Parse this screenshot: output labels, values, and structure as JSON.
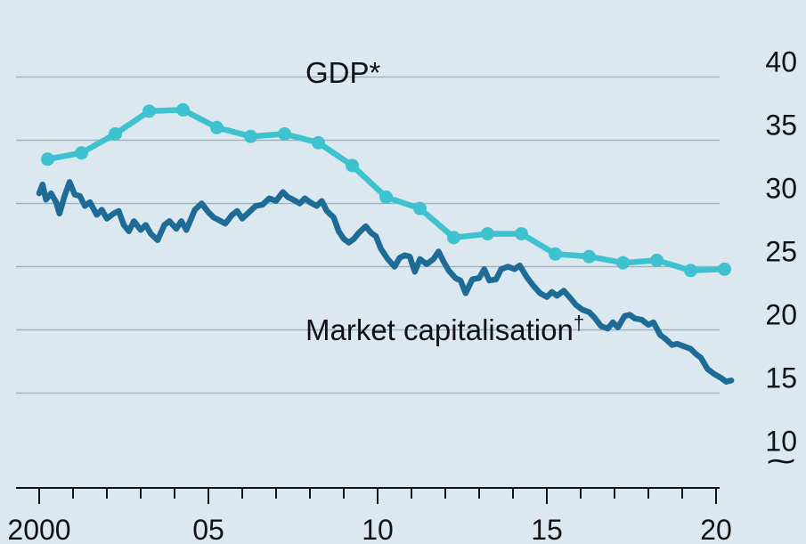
{
  "chart_data": {
    "type": "line",
    "title": "",
    "xlabel": "",
    "ylabel": "",
    "xlim": [
      1999.8,
      2020.6
    ],
    "ylim": [
      10,
      40
    ],
    "y_axis_break": true,
    "grid": true,
    "legend": "inline labels",
    "x_ticks": [
      {
        "value": 2000,
        "label": "2000"
      },
      {
        "value": 2005,
        "label": "05"
      },
      {
        "value": 2010,
        "label": "10"
      },
      {
        "value": 2015,
        "label": "15"
      },
      {
        "value": 2020,
        "label": "20"
      }
    ],
    "y_ticks": [
      10,
      15,
      20,
      25,
      30,
      35,
      40
    ],
    "break_symbol": "⁓",
    "colors": {
      "background": "#dbe8f0",
      "grid": "#9fb3bf",
      "gdp": "#3fc2cf",
      "market": "#1e6c96",
      "axis": "#121212"
    },
    "series": [
      {
        "name": "GDP*",
        "marker": "circle",
        "points": [
          [
            2000.25,
            33.5
          ],
          [
            2001.25,
            34.0
          ],
          [
            2002.25,
            35.5
          ],
          [
            2003.25,
            37.3
          ],
          [
            2004.25,
            37.4
          ],
          [
            2005.25,
            36.0
          ],
          [
            2006.25,
            35.3
          ],
          [
            2007.25,
            35.5
          ],
          [
            2008.25,
            34.8
          ],
          [
            2009.25,
            33.0
          ],
          [
            2010.25,
            30.5
          ],
          [
            2011.25,
            29.6
          ],
          [
            2012.25,
            27.3
          ],
          [
            2013.25,
            27.6
          ],
          [
            2014.25,
            27.6
          ],
          [
            2015.25,
            26.0
          ],
          [
            2016.25,
            25.8
          ],
          [
            2017.25,
            25.3
          ],
          [
            2018.25,
            25.5
          ],
          [
            2019.25,
            24.7
          ],
          [
            2020.25,
            24.8
          ]
        ]
      },
      {
        "name": "Market capitalisation†",
        "marker": "none",
        "points": [
          [
            2000.0,
            30.8
          ],
          [
            2000.1,
            31.5
          ],
          [
            2000.2,
            30.3
          ],
          [
            2000.35,
            30.8
          ],
          [
            2000.5,
            30.1
          ],
          [
            2000.6,
            29.2
          ],
          [
            2000.75,
            30.6
          ],
          [
            2000.9,
            31.7
          ],
          [
            2001.05,
            30.7
          ],
          [
            2001.2,
            30.6
          ],
          [
            2001.35,
            29.8
          ],
          [
            2001.5,
            30.1
          ],
          [
            2001.7,
            29.1
          ],
          [
            2001.85,
            29.5
          ],
          [
            2002.0,
            28.8
          ],
          [
            2002.2,
            29.2
          ],
          [
            2002.35,
            29.4
          ],
          [
            2002.5,
            28.3
          ],
          [
            2002.65,
            27.8
          ],
          [
            2002.8,
            28.6
          ],
          [
            2003.0,
            27.9
          ],
          [
            2003.15,
            28.3
          ],
          [
            2003.3,
            27.6
          ],
          [
            2003.5,
            27.1
          ],
          [
            2003.7,
            28.3
          ],
          [
            2003.85,
            28.6
          ],
          [
            2004.05,
            28.0
          ],
          [
            2004.2,
            28.6
          ],
          [
            2004.35,
            27.9
          ],
          [
            2004.6,
            29.5
          ],
          [
            2004.8,
            30.0
          ],
          [
            2005.0,
            29.3
          ],
          [
            2005.15,
            28.9
          ],
          [
            2005.3,
            28.7
          ],
          [
            2005.5,
            28.4
          ],
          [
            2005.7,
            29.1
          ],
          [
            2005.85,
            29.4
          ],
          [
            2006.0,
            28.8
          ],
          [
            2006.2,
            29.3
          ],
          [
            2006.4,
            29.8
          ],
          [
            2006.6,
            29.9
          ],
          [
            2006.8,
            30.4
          ],
          [
            2007.0,
            30.2
          ],
          [
            2007.2,
            30.9
          ],
          [
            2007.35,
            30.5
          ],
          [
            2007.5,
            30.3
          ],
          [
            2007.7,
            30.0
          ],
          [
            2007.85,
            30.4
          ],
          [
            2008.0,
            30.1
          ],
          [
            2008.2,
            29.8
          ],
          [
            2008.35,
            30.2
          ],
          [
            2008.5,
            29.4
          ],
          [
            2008.7,
            28.9
          ],
          [
            2008.85,
            27.8
          ],
          [
            2009.0,
            27.2
          ],
          [
            2009.15,
            26.9
          ],
          [
            2009.3,
            27.2
          ],
          [
            2009.45,
            27.7
          ],
          [
            2009.65,
            28.2
          ],
          [
            2009.8,
            27.7
          ],
          [
            2009.95,
            27.4
          ],
          [
            2010.1,
            26.4
          ],
          [
            2010.3,
            25.6
          ],
          [
            2010.5,
            25.0
          ],
          [
            2010.65,
            25.7
          ],
          [
            2010.8,
            25.9
          ],
          [
            2010.95,
            25.8
          ],
          [
            2011.1,
            24.6
          ],
          [
            2011.25,
            25.6
          ],
          [
            2011.45,
            25.2
          ],
          [
            2011.65,
            25.6
          ],
          [
            2011.8,
            26.2
          ],
          [
            2011.95,
            25.4
          ],
          [
            2012.1,
            24.7
          ],
          [
            2012.3,
            24.1
          ],
          [
            2012.45,
            23.9
          ],
          [
            2012.6,
            22.9
          ],
          [
            2012.8,
            24.0
          ],
          [
            2013.0,
            24.1
          ],
          [
            2013.15,
            24.8
          ],
          [
            2013.3,
            23.9
          ],
          [
            2013.5,
            24.0
          ],
          [
            2013.65,
            24.8
          ],
          [
            2013.85,
            25.0
          ],
          [
            2014.05,
            24.8
          ],
          [
            2014.2,
            25.1
          ],
          [
            2014.4,
            24.2
          ],
          [
            2014.6,
            23.5
          ],
          [
            2014.8,
            22.9
          ],
          [
            2015.0,
            22.6
          ],
          [
            2015.15,
            23.0
          ],
          [
            2015.3,
            22.7
          ],
          [
            2015.5,
            23.1
          ],
          [
            2015.7,
            22.5
          ],
          [
            2015.85,
            22.0
          ],
          [
            2016.05,
            21.6
          ],
          [
            2016.25,
            21.4
          ],
          [
            2016.4,
            21.0
          ],
          [
            2016.6,
            20.3
          ],
          [
            2016.8,
            20.1
          ],
          [
            2016.95,
            20.6
          ],
          [
            2017.1,
            20.2
          ],
          [
            2017.3,
            21.1
          ],
          [
            2017.45,
            21.2
          ],
          [
            2017.6,
            20.9
          ],
          [
            2017.8,
            20.8
          ],
          [
            2018.0,
            20.4
          ],
          [
            2018.15,
            20.6
          ],
          [
            2018.35,
            19.6
          ],
          [
            2018.5,
            19.3
          ],
          [
            2018.7,
            18.8
          ],
          [
            2018.85,
            18.9
          ],
          [
            2019.05,
            18.7
          ],
          [
            2019.25,
            18.5
          ],
          [
            2019.4,
            18.1
          ],
          [
            2019.55,
            17.8
          ],
          [
            2019.75,
            16.9
          ],
          [
            2019.95,
            16.5
          ],
          [
            2020.15,
            16.2
          ],
          [
            2020.3,
            15.9
          ],
          [
            2020.45,
            16.0
          ]
        ]
      }
    ]
  },
  "labels": {
    "gdp": "GDP*",
    "market": "Market capitalisation",
    "market_mark": "†"
  }
}
